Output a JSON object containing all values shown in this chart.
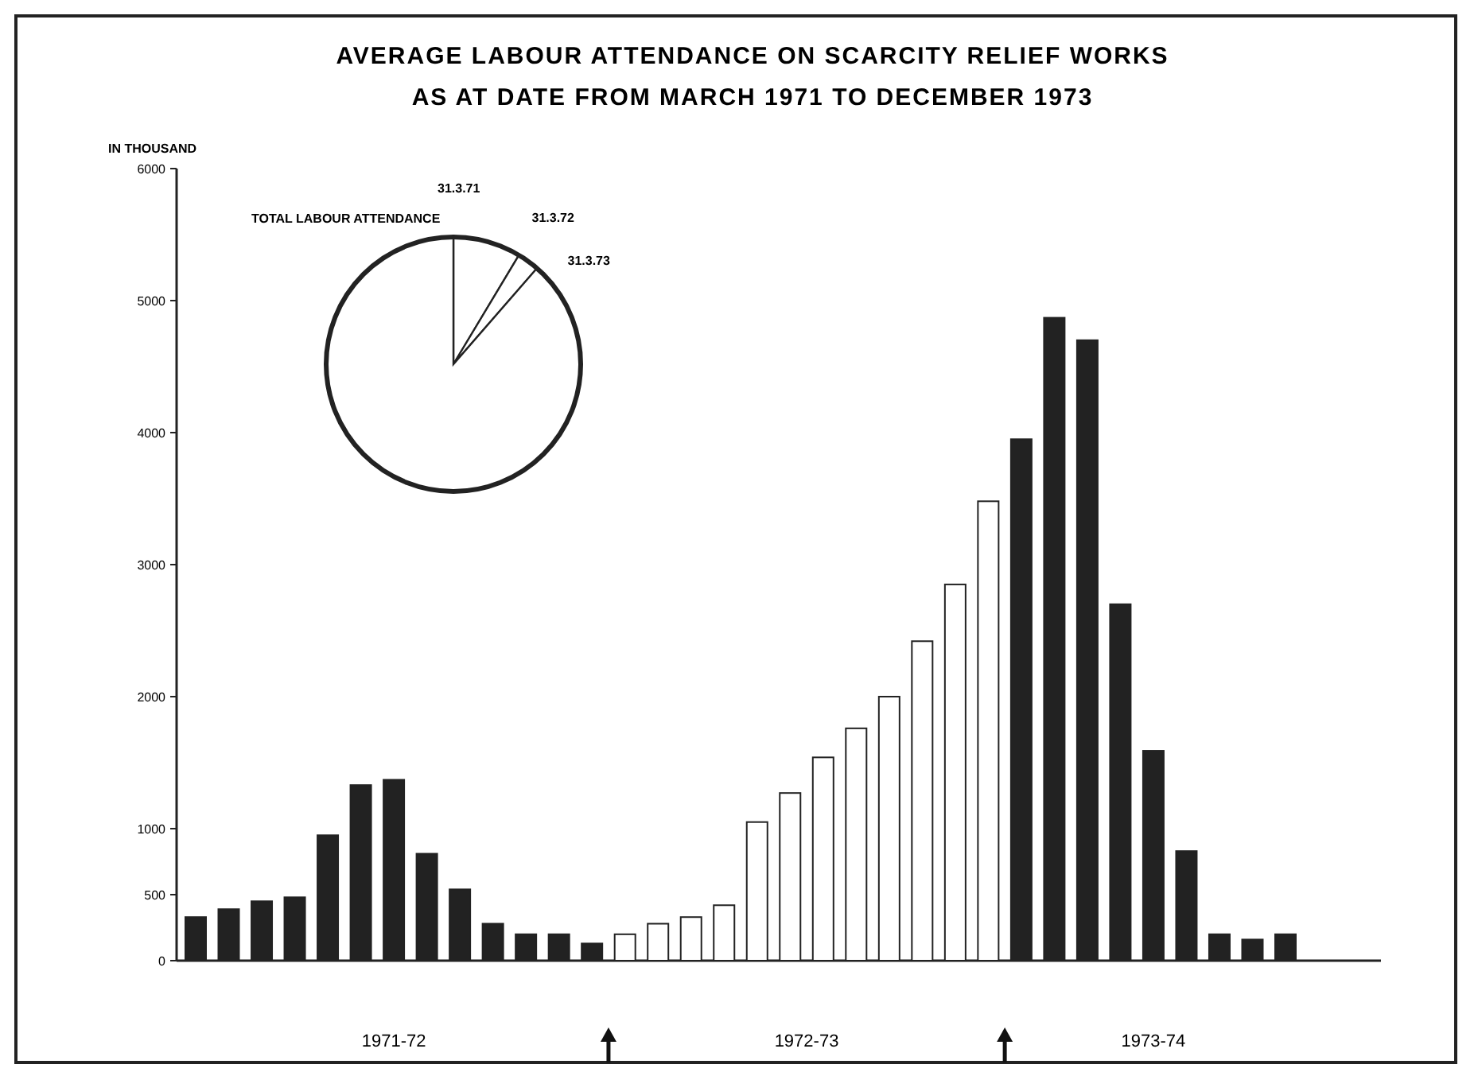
{
  "chart_data": [
    {
      "type": "bar",
      "title": "AVERAGE LABOUR ATTENDANCE ON SCARCITY RELIEF WORKS\nAS AT DATE FROM MARCH 1971 TO DECEMBER 1973",
      "ylabel": "IN THOUSAND",
      "categories": [
        null,
        null,
        null,
        null,
        null,
        null,
        null,
        null,
        null,
        null,
        null,
        null,
        null,
        null,
        null,
        null,
        null,
        null,
        null,
        null,
        null,
        null,
        null,
        null,
        null,
        null,
        null,
        null,
        null,
        null,
        null,
        null,
        null,
        null
      ],
      "values": [
        330,
        390,
        450,
        480,
        950,
        1330,
        1370,
        810,
        540,
        280,
        200,
        200,
        130,
        200,
        280,
        330,
        420,
        1050,
        1270,
        1540,
        1760,
        2000,
        2420,
        2850,
        3480,
        3950,
        4870,
        4700,
        2700,
        1590,
        830,
        200,
        160,
        200
      ],
      "colors": [
        "#222222",
        "#222222",
        "#222222",
        "#222222",
        "#222222",
        "#222222",
        "#222222",
        "#222222",
        "#222222",
        "#222222",
        "#222222",
        "#222222",
        "#222222",
        "#ffffff",
        "#ffffff",
        "#ffffff",
        "#ffffff",
        "#ffffff",
        "#ffffff",
        "#ffffff",
        "#ffffff",
        "#ffffff",
        "#ffffff",
        "#ffffff",
        "#ffffff",
        "#222222",
        "#222222",
        "#222222",
        "#222222",
        "#222222",
        "#222222",
        "#222222",
        "#222222",
        "#222222"
      ],
      "ylim": [
        0,
        6000
      ],
      "yticks": [
        0,
        {
          "value": 500,
          "label": "500"
        },
        1000,
        2000,
        3000,
        4000,
        5000,
        6000
      ],
      "annotations": [
        "1971-72",
        "1972-73",
        "1973-74"
      ]
    },
    {
      "type": "pie",
      "title": "TOTAL LABOUR ATTENDANCE",
      "categories": [
        null,
        null,
        null
      ],
      "values": [
        8.6,
        2.8,
        88.6
      ],
      "colors": [
        "#ffffff",
        "#ffffff",
        "#ffffff"
      ],
      "annotations": [
        "31.3.71",
        "31.3.72",
        "31.3.73"
      ]
    }
  ]
}
